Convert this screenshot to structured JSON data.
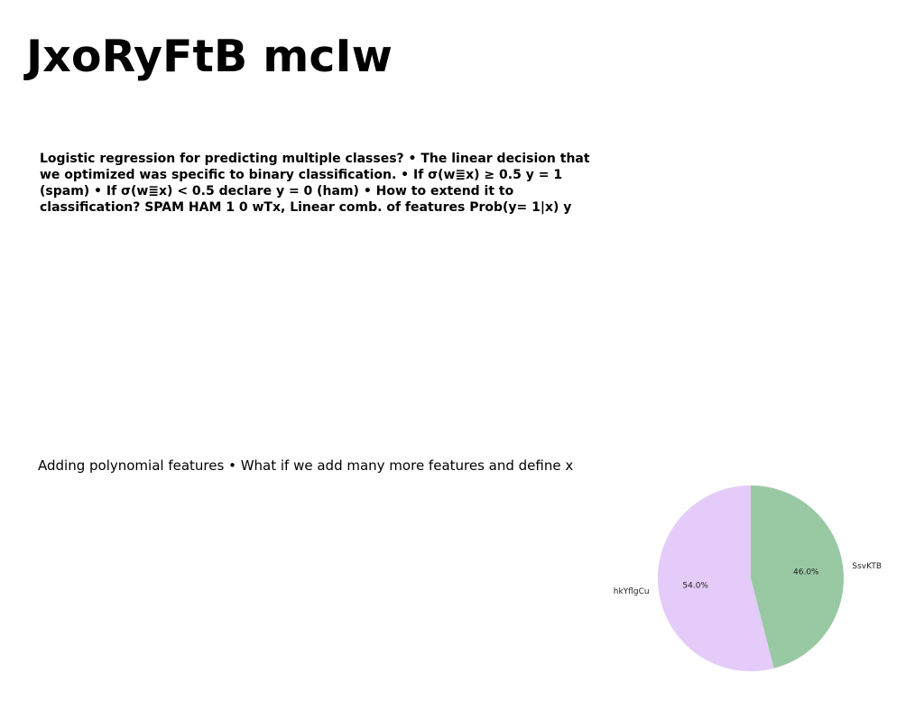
{
  "slide": {
    "title": "JxoRyFtB mcIw",
    "body": "Logistic regression for predicting multiple classes? • The linear decision that we optimized was specific to binary classification. • If σ(w≣x) ≥ 0.5 y = 1 (spam) • If σ(w≣x) < 0.5 declare y = 0 (ham) • How to extend it to classification? SPAM HAM 1 0 wTx, Linear comb. of features Prob(y= 1|x) y",
    "caption": "Adding polynomial features • What if we add many more features and define x"
  },
  "chart_data": {
    "type": "pie",
    "labels": [
      "SsvKTB",
      "hkYflgCu"
    ],
    "values": [
      46.0,
      54.0
    ],
    "autopct": [
      "46.0%",
      "54.0%"
    ],
    "colors": [
      "#99c9a3",
      "#e5cbf9"
    ],
    "start_angle_deg": 90,
    "direction": "clockwise"
  }
}
